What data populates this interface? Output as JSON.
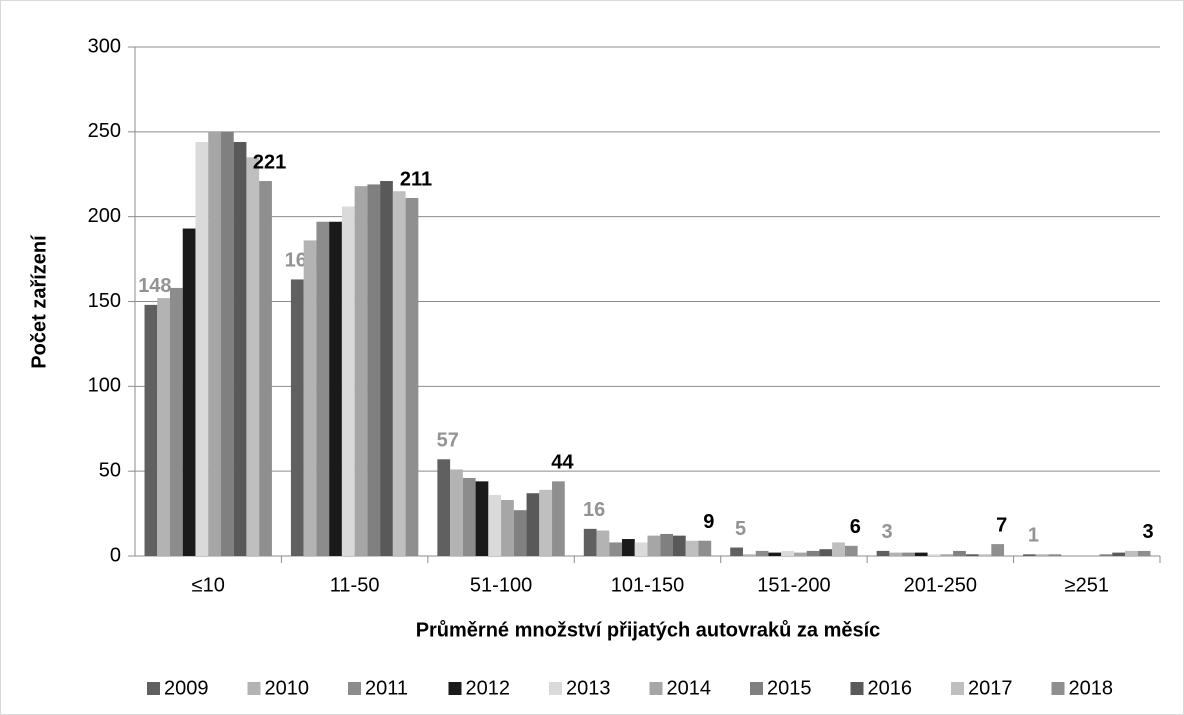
{
  "chart_data": {
    "type": "bar",
    "y_label": "Počet zařízení",
    "x_label": "Průměrné množství přijatých autovraků za měsíc",
    "categories": [
      "≤10",
      "11-50",
      "51-100",
      "101-150",
      "151-200",
      "201-250",
      "≥251"
    ],
    "series": [
      {
        "name": "2009",
        "color": "#606060",
        "values": [
          148,
          163,
          57,
          16,
          5,
          3,
          1
        ]
      },
      {
        "name": "2010",
        "color": "#b3b3b3",
        "values": [
          152,
          186,
          51,
          15,
          1,
          2,
          1
        ]
      },
      {
        "name": "2011",
        "color": "#8c8c8c",
        "values": [
          158,
          197,
          46,
          8,
          3,
          2,
          1
        ]
      },
      {
        "name": "2012",
        "color": "#1a1a1a",
        "values": [
          193,
          197,
          44,
          10,
          2,
          2,
          0
        ]
      },
      {
        "name": "2013",
        "color": "#dadada",
        "values": [
          244,
          206,
          36,
          8,
          3,
          1,
          0
        ]
      },
      {
        "name": "2014",
        "color": "#a6a6a6",
        "values": [
          250,
          218,
          33,
          12,
          2,
          1,
          0
        ]
      },
      {
        "name": "2015",
        "color": "#808080",
        "values": [
          250,
          219,
          27,
          13,
          3,
          3,
          1
        ]
      },
      {
        "name": "2016",
        "color": "#595959",
        "values": [
          244,
          221,
          37,
          12,
          4,
          1,
          2
        ]
      },
      {
        "name": "2017",
        "color": "#bfbfbf",
        "values": [
          235,
          215,
          39,
          9,
          8,
          1,
          3
        ]
      },
      {
        "name": "2018",
        "color": "#8f8f8f",
        "values": [
          221,
          211,
          44,
          9,
          6,
          7,
          3
        ]
      }
    ],
    "ylim": [
      0,
      300
    ],
    "yticks": [
      0,
      50,
      100,
      150,
      200,
      250,
      300
    ],
    "grid": true,
    "legend": "bottom"
  }
}
